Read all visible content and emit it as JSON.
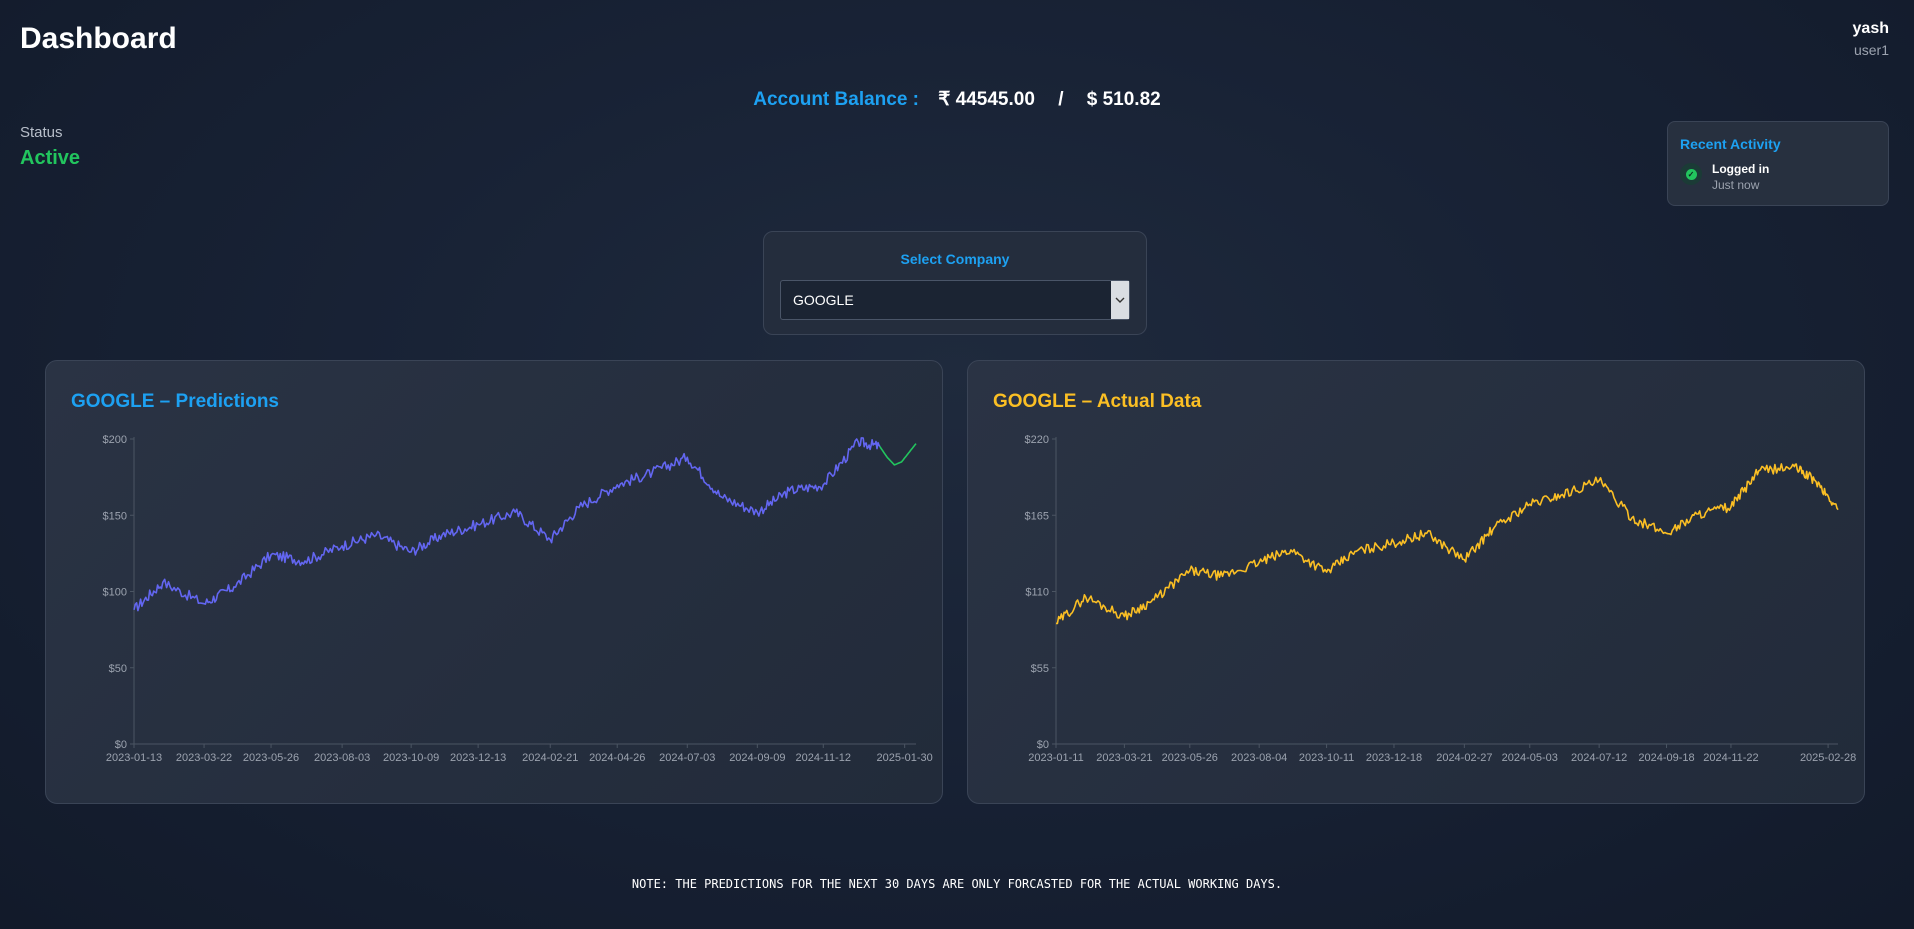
{
  "header": {
    "title": "Dashboard"
  },
  "user": {
    "name": "yash",
    "username": "user1"
  },
  "balance": {
    "label": "Account Balance :",
    "inr": "₹ 44545.00",
    "separator": "/",
    "usd": "$ 510.82"
  },
  "status": {
    "label": "Status",
    "value": "Active"
  },
  "activity": {
    "title": "Recent Activity",
    "item_title": "Logged in",
    "item_time": "Just now",
    "icon": "check-circle-icon"
  },
  "company_select": {
    "label": "Select Company",
    "value": "GOOGLE",
    "icon": "chevron-down-icon"
  },
  "charts": {
    "predictions": {
      "title": "GOOGLE – Predictions",
      "title_color": "#1da1f2"
    },
    "actual": {
      "title": "GOOGLE – Actual Data",
      "title_color": "#fbbf24"
    }
  },
  "chart_data": [
    {
      "type": "line",
      "title": "GOOGLE – Predictions",
      "xlabel": "",
      "ylabel": "",
      "ylim": [
        0,
        200
      ],
      "y_ticks": [
        "$0",
        "$50",
        "$100",
        "$150",
        "$200"
      ],
      "y_tick_values": [
        0,
        50,
        100,
        150,
        200
      ],
      "x_ticks": [
        "2023-01-13",
        "2023-03-22",
        "2023-05-26",
        "2023-08-03",
        "2023-10-09",
        "2023-12-13",
        "2024-02-21",
        "2024-04-26",
        "2024-07-03",
        "2024-09-09",
        "2024-11-12",
        "2025-01-30"
      ],
      "grid": false,
      "series": [
        {
          "color": "#6366f1",
          "x": [
            "2023-01-13",
            "2023-02-10",
            "2023-03-22",
            "2023-04-20",
            "2023-05-26",
            "2023-06-28",
            "2023-08-03",
            "2023-09-05",
            "2023-10-09",
            "2023-11-08",
            "2023-12-13",
            "2024-01-18",
            "2024-02-21",
            "2024-03-20",
            "2024-04-26",
            "2024-05-30",
            "2024-07-03",
            "2024-08-05",
            "2024-09-09",
            "2024-10-10",
            "2024-11-12",
            "2024-12-16",
            "2025-01-06"
          ],
          "values": [
            88,
            106,
            92,
            103,
            124,
            120,
            130,
            137,
            126,
            137,
            144,
            152,
            134,
            155,
            170,
            178,
            188,
            162,
            152,
            166,
            170,
            198,
            195
          ]
        },
        {
          "color": "#22c55e",
          "x": [
            "2025-01-06",
            "2025-01-13",
            "2025-01-20",
            "2025-01-27",
            "2025-02-03",
            "2025-02-10"
          ],
          "values": [
            195,
            188,
            183,
            185,
            191,
            197
          ]
        }
      ]
    },
    {
      "type": "line",
      "title": "GOOGLE – Actual Data",
      "xlabel": "",
      "ylabel": "",
      "ylim": [
        0,
        220
      ],
      "y_ticks": [
        "$0",
        "$55",
        "$110",
        "$165",
        "$220"
      ],
      "y_tick_values": [
        0,
        55,
        110,
        165,
        220
      ],
      "x_ticks": [
        "2023-01-11",
        "2023-03-21",
        "2023-05-26",
        "2023-08-04",
        "2023-10-11",
        "2023-12-18",
        "2024-02-27",
        "2024-05-03",
        "2024-07-12",
        "2024-09-18",
        "2024-11-22",
        "2025-02-28"
      ],
      "grid": false,
      "series": [
        {
          "color": "#fbbf24",
          "x": [
            "2023-01-11",
            "2023-02-10",
            "2023-03-21",
            "2023-04-20",
            "2023-05-26",
            "2023-06-28",
            "2023-08-04",
            "2023-09-05",
            "2023-10-11",
            "2023-11-10",
            "2023-12-18",
            "2024-01-20",
            "2024-02-27",
            "2024-03-28",
            "2024-05-03",
            "2024-06-05",
            "2024-07-12",
            "2024-08-14",
            "2024-09-18",
            "2024-10-20",
            "2024-11-22",
            "2024-12-20",
            "2025-01-25",
            "2025-02-15",
            "2025-03-10"
          ],
          "values": [
            87,
            106,
            92,
            104,
            125,
            121,
            131,
            140,
            124,
            139,
            145,
            152,
            133,
            156,
            173,
            180,
            190,
            163,
            152,
            166,
            171,
            197,
            200,
            190,
            169
          ]
        }
      ]
    }
  ],
  "note": "NOTE: THE PREDICTIONS FOR THE NEXT 30 DAYS ARE ONLY FORCASTED FOR THE ACTUAL WORKING DAYS."
}
